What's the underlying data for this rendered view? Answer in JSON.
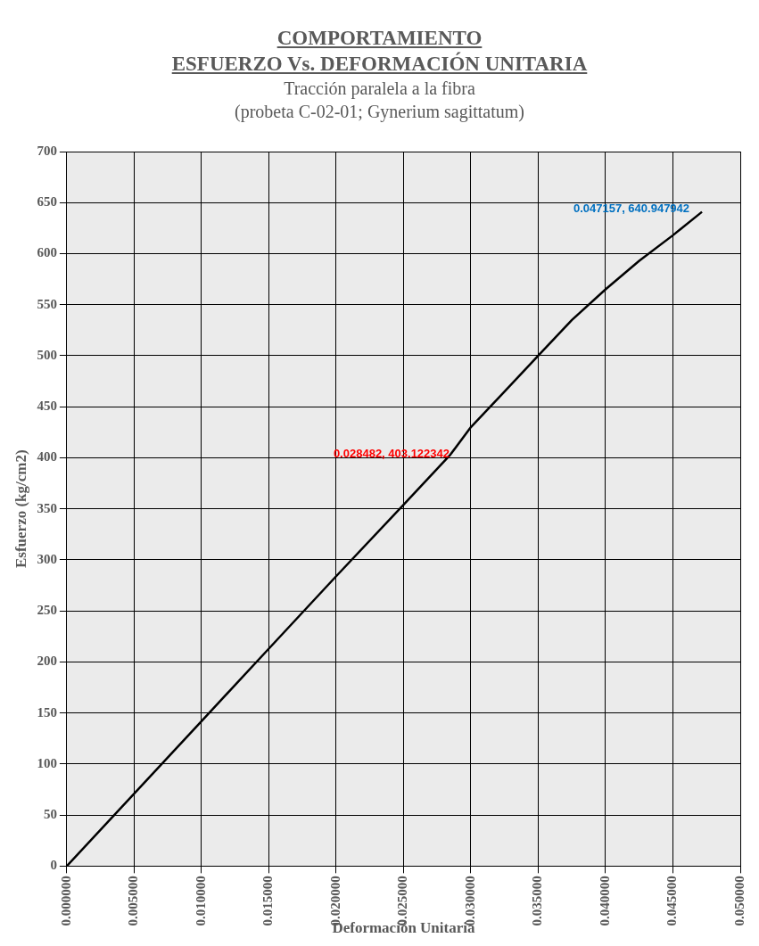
{
  "chart_data": {
    "type": "line",
    "title": [
      "COMPORTAMIENTO",
      "ESFUERZO Vs. DEFORMACIÓN UNITARIA"
    ],
    "subtitle": [
      "Tracción  paralela a la fibra",
      "(probeta C-02-01; Gynerium sagittatum)"
    ],
    "xlabel": "Deformación Unitaria",
    "ylabel": "Esfuerzo (kg/cm2)",
    "series": [
      {
        "color": "#000000",
        "x": [
          0,
          0.005,
          0.01,
          0.015,
          0.02,
          0.025,
          0.028482,
          0.03,
          0.0325,
          0.035,
          0.0375,
          0.04,
          0.0425,
          0.045,
          0.047157
        ],
        "values": [
          0,
          71,
          142,
          213,
          284,
          354,
          403.122342,
          430,
          465,
          500,
          535,
          565,
          593,
          618,
          640.947942
        ]
      }
    ],
    "xlim": [
      0,
      0.05
    ],
    "xticks": [
      {
        "value": 0,
        "label": "0.000000"
      },
      {
        "value": 0.005,
        "label": "0.005000"
      },
      {
        "value": 0.01,
        "label": "0.010000"
      },
      {
        "value": 0.015,
        "label": "0.015000"
      },
      {
        "value": 0.02,
        "label": "0.020000"
      },
      {
        "value": 0.025,
        "label": "0.025000"
      },
      {
        "value": 0.03,
        "label": "0.030000"
      },
      {
        "value": 0.035,
        "label": "0.035000"
      },
      {
        "value": 0.04,
        "label": "0.040000"
      },
      {
        "value": 0.045,
        "label": "0.045000"
      },
      {
        "value": 0.05,
        "label": "0.050000"
      }
    ],
    "ylim": [
      0,
      700
    ],
    "yticks": [
      0,
      50,
      100,
      150,
      200,
      250,
      300,
      350,
      400,
      450,
      500,
      550,
      600,
      650,
      700
    ],
    "annotations": [
      {
        "text": "0.028482, 403.122342",
        "x": 0.028482,
        "y": 403.122342
      },
      {
        "text": "0.047157, 640.947942",
        "x": 0.047157,
        "y": 640.947942
      }
    ],
    "grid": true,
    "legend": false,
    "marker": "none",
    "line_style": "solid"
  }
}
